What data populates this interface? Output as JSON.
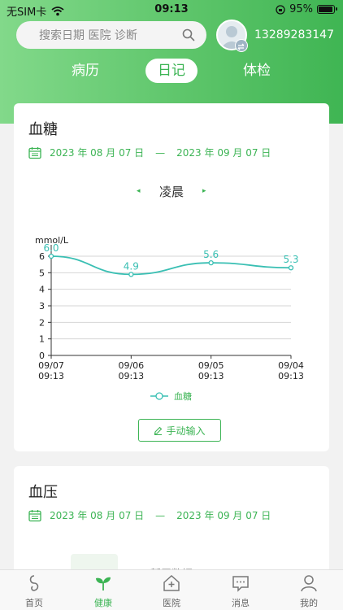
{
  "status_bar": {
    "carrier": "无SIM卡",
    "time": "09:13",
    "battery": "95%"
  },
  "search": {
    "placeholder": "搜索日期  医院  诊断"
  },
  "user": {
    "phone": "13289283147"
  },
  "tabs": [
    {
      "label": "病历",
      "active": false
    },
    {
      "label": "日记",
      "active": true
    },
    {
      "label": "体检",
      "active": false
    }
  ],
  "blood_sugar": {
    "title": "血糖",
    "date_start": "2023 年 08 月 07 日",
    "date_sep": "—",
    "date_end": "2023 年 09 月 07 日",
    "period": "凌晨",
    "manual_button": "手动输入"
  },
  "blood_pressure": {
    "title": "血压",
    "date_start": "2023 年 08 月 07 日",
    "date_sep": "—",
    "date_end": "2023 年 09 月 07 日",
    "partial_text": "暂无数据"
  },
  "chart_data": {
    "type": "line",
    "ylabel": "mmol/L",
    "ylim": [
      0,
      6
    ],
    "yticks": [
      0,
      1,
      2,
      3,
      4,
      5,
      6
    ],
    "categories": [
      "09/07 09:13",
      "09/06 09:13",
      "09/05 09:13",
      "09/04 09:13"
    ],
    "series": [
      {
        "name": "血糖",
        "values": [
          6.0,
          4.9,
          5.6,
          5.3
        ],
        "color": "#39bfb3"
      }
    ],
    "data_labels": [
      "6.0",
      "4.9",
      "5.6",
      "5.3"
    ],
    "grid": true,
    "legend": "bottom-center"
  },
  "bottom_nav": [
    {
      "label": "首页",
      "icon": "home-icon",
      "active": false
    },
    {
      "label": "健康",
      "icon": "sprout-icon",
      "active": true
    },
    {
      "label": "医院",
      "icon": "hospital-icon",
      "active": false
    },
    {
      "label": "消息",
      "icon": "message-icon",
      "active": false
    },
    {
      "label": "我的",
      "icon": "user-icon",
      "active": false
    }
  ],
  "colors": {
    "accent": "#3cb454",
    "chart_line": "#39bfb3",
    "header_light": "#82d98a",
    "header_dark": "#3fb553"
  }
}
